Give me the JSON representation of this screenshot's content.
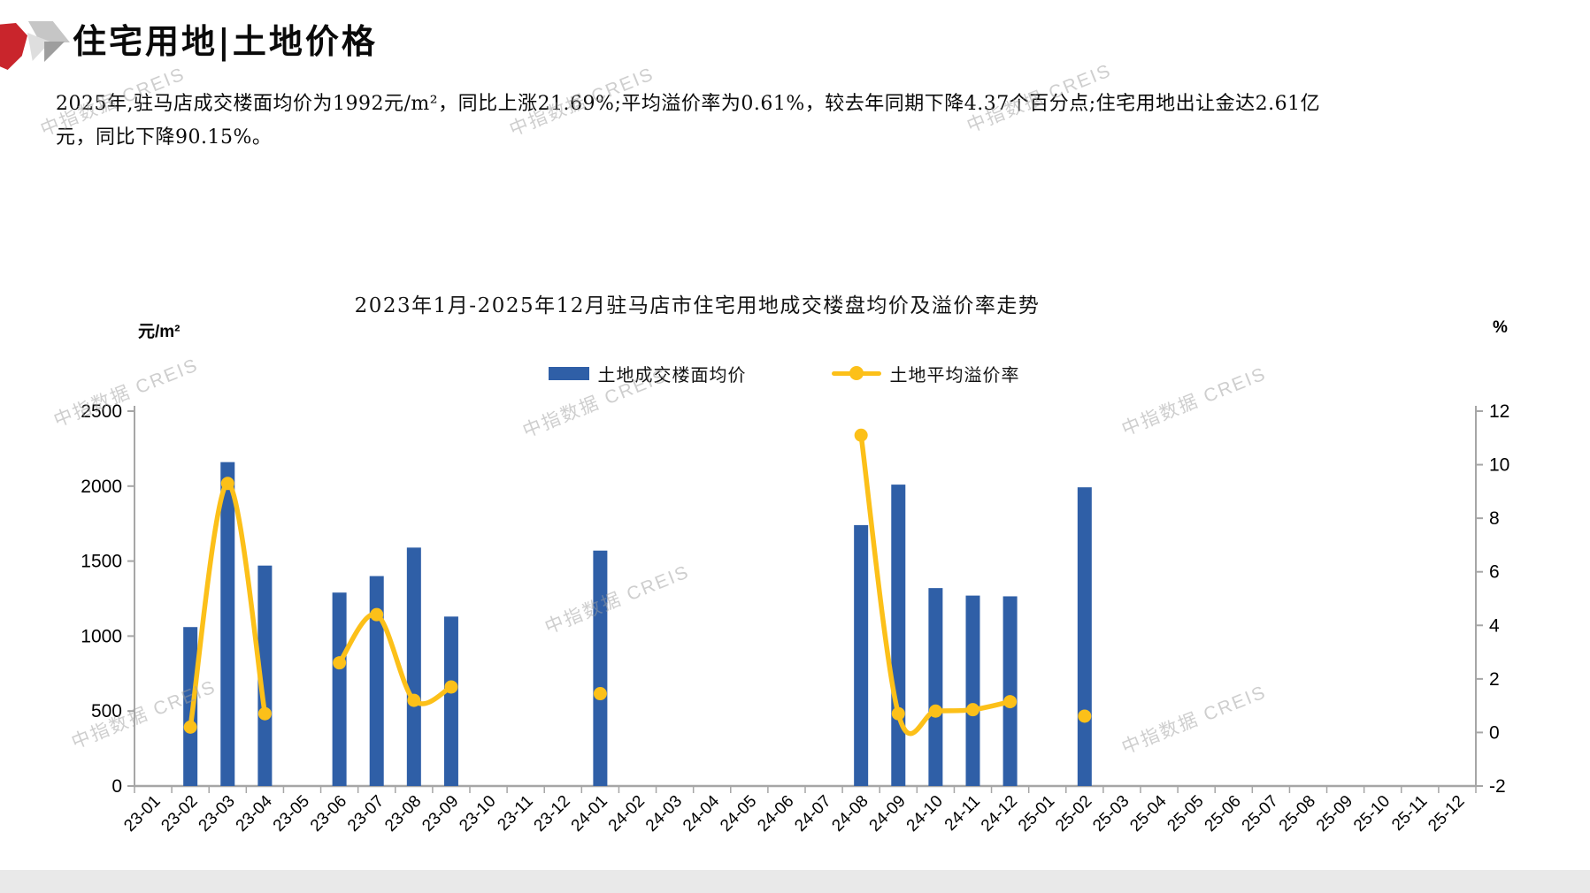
{
  "header": {
    "title": "住宅用地|土地价格",
    "accent_color": "#C9252C",
    "logo": {
      "red": "#C9252C",
      "gray_light": "#C6C6C6",
      "gray_dark": "#9E9E9E",
      "gray_pale": "#DEDEDE"
    }
  },
  "summary": {
    "text": "2025年,驻马店成交楼面均价为1992元/m²，同比上涨21.69%;平均溢价率为0.61%，较去年同期下降4.37个百分点;住宅用地出让金达2.61亿元，同比下降90.15%。"
  },
  "watermark": {
    "text": "中指数据 CREIS"
  },
  "chart_data": {
    "type": "combo-bar-line",
    "title": "2023年1月-2025年12月驻马店市住宅用地成交楼盘均价及溢价率走势",
    "grid": false,
    "legend_position": "top",
    "axis_color": "#A6A6A6",
    "categories": [
      "23-01",
      "23-02",
      "23-03",
      "23-04",
      "23-05",
      "23-06",
      "23-07",
      "23-08",
      "23-09",
      "23-10",
      "23-11",
      "23-12",
      "24-01",
      "24-02",
      "24-03",
      "24-04",
      "24-05",
      "24-06",
      "24-07",
      "24-08",
      "24-09",
      "24-10",
      "24-11",
      "24-12",
      "25-01",
      "25-02",
      "25-03",
      "25-04",
      "25-05",
      "25-06",
      "25-07",
      "25-08",
      "25-09",
      "25-10",
      "25-11",
      "25-12"
    ],
    "left_axis": {
      "unit": "元/m²",
      "min": 0,
      "max": 2500,
      "ticks": [
        0,
        500,
        1000,
        1500,
        2000,
        2500
      ]
    },
    "right_axis": {
      "unit": "%",
      "min": -2,
      "max": 12,
      "ticks": [
        -2,
        0,
        2,
        4,
        6,
        8,
        10,
        12
      ]
    },
    "series": [
      {
        "name": "土地成交楼面均价",
        "type": "bar",
        "axis": "left",
        "color": "#2F5FA7",
        "values": [
          null,
          1060,
          2160,
          1470,
          null,
          1290,
          1400,
          1590,
          1130,
          null,
          null,
          null,
          1570,
          null,
          null,
          null,
          null,
          null,
          null,
          1740,
          2010,
          1320,
          1270,
          1265,
          null,
          1992,
          null,
          null,
          null,
          null,
          null,
          null,
          null,
          null,
          null,
          null
        ]
      },
      {
        "name": "土地平均溢价率",
        "type": "line",
        "axis": "right",
        "color": "#FCC019",
        "values": [
          null,
          0.2,
          9.3,
          0.7,
          null,
          2.6,
          4.4,
          1.2,
          1.7,
          null,
          null,
          null,
          1.45,
          null,
          null,
          null,
          null,
          null,
          null,
          11.1,
          0.7,
          0.8,
          0.85,
          1.15,
          null,
          0.61,
          null,
          null,
          null,
          null,
          null,
          null,
          null,
          null,
          null,
          null
        ]
      }
    ]
  }
}
